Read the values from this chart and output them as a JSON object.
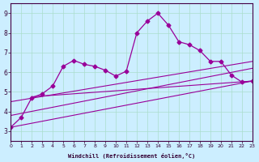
{
  "xlabel": "Windchill (Refroidissement éolien,°C)",
  "xlim": [
    0,
    23
  ],
  "ylim": [
    2.5,
    9.5
  ],
  "xticks": [
    0,
    1,
    2,
    3,
    4,
    5,
    6,
    7,
    8,
    9,
    10,
    11,
    12,
    13,
    14,
    15,
    16,
    17,
    18,
    19,
    20,
    21,
    22,
    23
  ],
  "yticks": [
    3,
    4,
    5,
    6,
    7,
    8,
    9
  ],
  "background_color": "#cceeff",
  "line_color": "#990099",
  "grid_color": "#aaddcc",
  "series": {
    "main": {
      "x": [
        0,
        1,
        2,
        3,
        4,
        5,
        6,
        7,
        8,
        9,
        10,
        11,
        12,
        13,
        14,
        15,
        16,
        17,
        18,
        19,
        20,
        21,
        22,
        23
      ],
      "y": [
        3.2,
        3.7,
        4.7,
        4.9,
        5.3,
        6.3,
        6.6,
        6.4,
        6.3,
        6.1,
        5.8,
        6.05,
        8.0,
        8.6,
        9.0,
        8.4,
        7.55,
        7.4,
        7.1,
        6.55,
        6.55,
        5.85,
        5.5,
        5.55
      ],
      "markersize": 2.5
    },
    "line1": {
      "x": [
        0,
        23
      ],
      "y": [
        3.2,
        5.55
      ]
    },
    "line2": {
      "x": [
        2,
        23
      ],
      "y": [
        4.75,
        5.55
      ]
    },
    "line3": {
      "x": [
        0,
        23
      ],
      "y": [
        4.5,
        6.55
      ]
    },
    "line4": {
      "x": [
        0,
        23
      ],
      "y": [
        3.8,
        6.2
      ]
    }
  }
}
